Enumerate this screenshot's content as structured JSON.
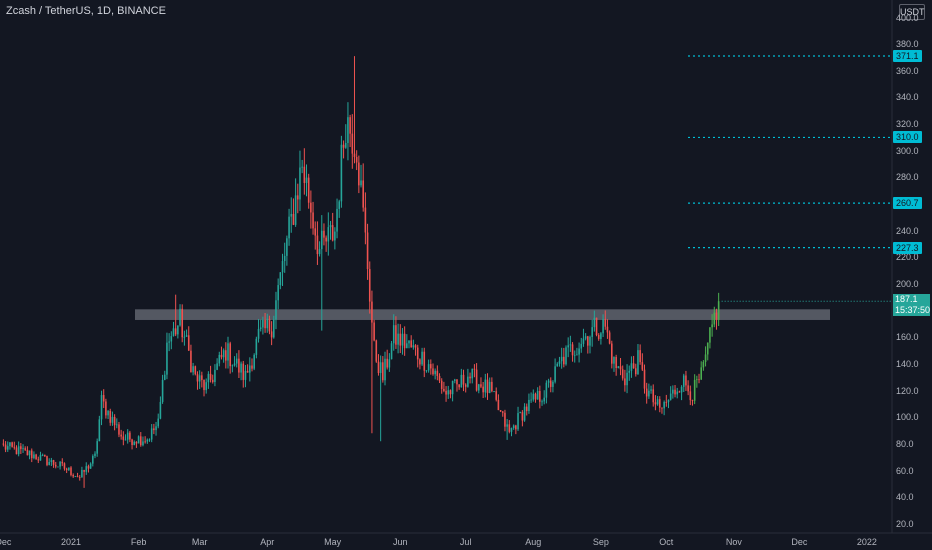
{
  "header": {
    "title": "Zcash / TetherUS, 1D, BINANCE"
  },
  "currency_button": "USDT",
  "price_label": {
    "price": "187.1",
    "countdown": "15:37:50"
  },
  "colors": {
    "background": "#131722",
    "up": "#26a69a",
    "up_bright": "#4caf50",
    "down": "#ef5350",
    "level": "#00bcd4",
    "zone": "#787b86"
  },
  "chart_data": {
    "type": "candlestick",
    "y_axis_labels": [
      "20.0",
      "40.0",
      "60.0",
      "80.0",
      "100.0",
      "120.0",
      "140.0",
      "160.0",
      "180.0",
      "200.0",
      "220.0",
      "240.0",
      "260.0",
      "280.0",
      "300.0",
      "320.0",
      "340.0",
      "360.0",
      "380.0",
      "400.0"
    ],
    "x_axis_labels": [
      "Dec",
      "2021",
      "Feb",
      "Mar",
      "Apr",
      "May",
      "Jun",
      "Jul",
      "Aug",
      "Sep",
      "Oct",
      "Nov",
      "Dec",
      "2022"
    ],
    "ylim": [
      14,
      404
    ],
    "grid": false,
    "levels": [
      {
        "value": 371.1,
        "label": "371.1"
      },
      {
        "value": 310.0,
        "label": "310.0"
      },
      {
        "value": 260.7,
        "label": "260.7"
      },
      {
        "value": 227.3,
        "label": "227.3"
      }
    ],
    "resistance_zone": {
      "low": 173,
      "high": 181
    },
    "last_price": 187.1,
    "path_anchors": [
      [
        "2020-12-01",
        78
      ],
      [
        "2020-12-14",
        72
      ],
      [
        "2020-12-29",
        62
      ],
      [
        "2021-01-05",
        55
      ],
      [
        "2021-01-12",
        70
      ],
      [
        "2021-01-15",
        112
      ],
      [
        "2021-01-25",
        84
      ],
      [
        "2021-02-05",
        84
      ],
      [
        "2021-02-10",
        95
      ],
      [
        "2021-02-14",
        155
      ],
      [
        "2021-02-20",
        172
      ],
      [
        "2021-02-27",
        130
      ],
      [
        "2021-03-04",
        122
      ],
      [
        "2021-03-13",
        150
      ],
      [
        "2021-03-22",
        130
      ],
      [
        "2021-03-28",
        160
      ],
      [
        "2021-04-03",
        170
      ],
      [
        "2021-04-10",
        230
      ],
      [
        "2021-04-17",
        290
      ],
      [
        "2021-04-25",
        225
      ],
      [
        "2021-05-02",
        240
      ],
      [
        "2021-05-07",
        325
      ],
      [
        "2021-05-12",
        305
      ],
      [
        "2021-05-17",
        215
      ],
      [
        "2021-05-20",
        150
      ],
      [
        "2021-05-24",
        130
      ],
      [
        "2021-05-29",
        160
      ],
      [
        "2021-06-04",
        155
      ],
      [
        "2021-06-14",
        140
      ],
      [
        "2021-06-22",
        118
      ],
      [
        "2021-06-28",
        124
      ],
      [
        "2021-07-02",
        132
      ],
      [
        "2021-07-12",
        120
      ],
      [
        "2021-07-21",
        88
      ],
      [
        "2021-07-28",
        106
      ],
      [
        "2021-08-07",
        120
      ],
      [
        "2021-08-15",
        145
      ],
      [
        "2021-08-23",
        158
      ],
      [
        "2021-08-30",
        168
      ],
      [
        "2021-09-03",
        168
      ],
      [
        "2021-09-07",
        140
      ],
      [
        "2021-09-12",
        130
      ],
      [
        "2021-09-18",
        142
      ],
      [
        "2021-09-22",
        120
      ],
      [
        "2021-09-28",
        105
      ],
      [
        "2021-10-03",
        115
      ],
      [
        "2021-10-08",
        128
      ],
      [
        "2021-10-13",
        118
      ],
      [
        "2021-10-17",
        130
      ],
      [
        "2021-10-20",
        150
      ],
      [
        "2021-10-23",
        175
      ],
      [
        "2021-10-25",
        187.1
      ]
    ],
    "spikes": [
      [
        "2021-02-18",
        "high",
        192
      ],
      [
        "2021-05-11",
        "high",
        371
      ],
      [
        "2021-05-19",
        "low",
        88
      ],
      [
        "2021-05-23",
        "low",
        82
      ],
      [
        "2021-04-26",
        "low",
        165
      ],
      [
        "2021-01-07",
        "low",
        47
      ],
      [
        "2021-07-20",
        "low",
        83
      ]
    ]
  }
}
